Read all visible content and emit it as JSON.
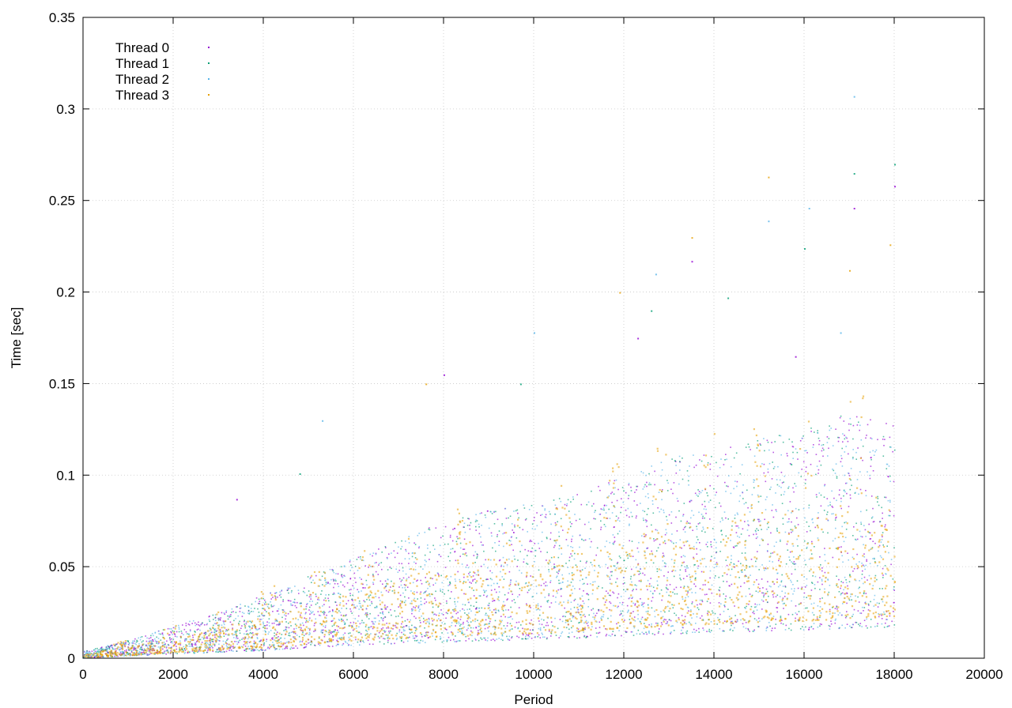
{
  "chart_data": {
    "type": "scatter",
    "title": "",
    "xlabel": "Period",
    "ylabel": "Time [sec]",
    "xlim": [
      0,
      20000
    ],
    "ylim": [
      0,
      0.35
    ],
    "x_ticks": [
      0,
      2000,
      4000,
      6000,
      8000,
      10000,
      12000,
      14000,
      16000,
      18000,
      20000
    ],
    "y_ticks": [
      0,
      0.05,
      0.1,
      0.15,
      0.2,
      0.25,
      0.3,
      0.35
    ],
    "x_tick_labels": [
      "0",
      "2000",
      "4000",
      "6000",
      "8000",
      "10000",
      "12000",
      "14000",
      "16000",
      "18000",
      "20000"
    ],
    "y_tick_labels": [
      "0",
      "0.05",
      "0.1",
      "0.15",
      "0.2",
      "0.25",
      "0.3",
      "0.35"
    ],
    "grid": true,
    "legend_position": "top-left",
    "series": [
      {
        "name": "Thread 0",
        "color": "#9400d3"
      },
      {
        "name": "Thread 1",
        "color": "#009e73"
      },
      {
        "name": "Thread 2",
        "color": "#56b4e9"
      },
      {
        "name": "Thread 3",
        "color": "#e69f00"
      }
    ],
    "trend_profile": {
      "x": [
        0,
        1000,
        2000,
        3000,
        4000,
        5000,
        6000,
        7000,
        8000,
        9000,
        10000,
        11000,
        12000,
        13000,
        14000,
        15000,
        16000,
        17000,
        18000
      ],
      "baseline": [
        0.002,
        0.005,
        0.009,
        0.012,
        0.015,
        0.02,
        0.025,
        0.028,
        0.03,
        0.033,
        0.035,
        0.038,
        0.042,
        0.045,
        0.048,
        0.05,
        0.052,
        0.055,
        0.058
      ],
      "upper": [
        0.004,
        0.01,
        0.018,
        0.025,
        0.035,
        0.045,
        0.055,
        0.065,
        0.075,
        0.082,
        0.085,
        0.09,
        0.1,
        0.11,
        0.115,
        0.12,
        0.125,
        0.135,
        0.13
      ]
    },
    "x_max_data": 18000,
    "outliers": [
      {
        "x": 3400,
        "y": 0.087
      },
      {
        "x": 4800,
        "y": 0.101
      },
      {
        "x": 5300,
        "y": 0.13
      },
      {
        "x": 7600,
        "y": 0.15
      },
      {
        "x": 8000,
        "y": 0.155
      },
      {
        "x": 9700,
        "y": 0.15
      },
      {
        "x": 10000,
        "y": 0.178
      },
      {
        "x": 11900,
        "y": 0.2
      },
      {
        "x": 12300,
        "y": 0.175
      },
      {
        "x": 12600,
        "y": 0.19
      },
      {
        "x": 12700,
        "y": 0.21
      },
      {
        "x": 13500,
        "y": 0.23
      },
      {
        "x": 13500,
        "y": 0.217
      },
      {
        "x": 14300,
        "y": 0.197
      },
      {
        "x": 15200,
        "y": 0.239
      },
      {
        "x": 15200,
        "y": 0.263
      },
      {
        "x": 15800,
        "y": 0.165
      },
      {
        "x": 16000,
        "y": 0.224
      },
      {
        "x": 16100,
        "y": 0.246
      },
      {
        "x": 17000,
        "y": 0.212
      },
      {
        "x": 17100,
        "y": 0.246
      },
      {
        "x": 17100,
        "y": 0.265
      },
      {
        "x": 17100,
        "y": 0.307
      },
      {
        "x": 17900,
        "y": 0.226
      },
      {
        "x": 18000,
        "y": 0.258
      },
      {
        "x": 18000,
        "y": 0.27
      },
      {
        "x": 16800,
        "y": 0.178
      }
    ]
  }
}
